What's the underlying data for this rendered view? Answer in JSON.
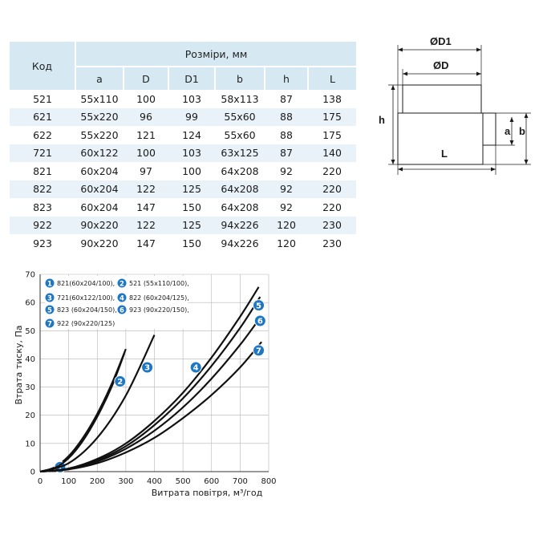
{
  "table": {
    "code_header": "Код",
    "group_header": "Розміри, мм",
    "columns": [
      "a",
      "D",
      "D1",
      "b",
      "h",
      "L"
    ],
    "rows": [
      [
        "521",
        "55x110",
        "100",
        "103",
        "58x113",
        "87",
        "138"
      ],
      [
        "621",
        "55x220",
        "96",
        "99",
        "55x60",
        "88",
        "175"
      ],
      [
        "622",
        "55x220",
        "121",
        "124",
        "55x60",
        "88",
        "175"
      ],
      [
        "721",
        "60x122",
        "100",
        "103",
        "63x125",
        "87",
        "140"
      ],
      [
        "821",
        "60x204",
        "97",
        "100",
        "64x208",
        "92",
        "220"
      ],
      [
        "822",
        "60x204",
        "122",
        "125",
        "64x208",
        "92",
        "220"
      ],
      [
        "823",
        "60x204",
        "147",
        "150",
        "64x208",
        "92",
        "220"
      ],
      [
        "922",
        "90x220",
        "122",
        "125",
        "94x226",
        "120",
        "230"
      ],
      [
        "923",
        "90x220",
        "147",
        "150",
        "94x226",
        "120",
        "230"
      ]
    ]
  },
  "diagram": {
    "d1_label": "ØD1",
    "d_label": "ØD",
    "h_label": "h",
    "a_label": "a",
    "b_label": "b",
    "l_label": "L"
  },
  "chart_data": {
    "type": "line",
    "xlabel": "Витрата повітря, м³/год",
    "ylabel": "Втрата тиску, Па",
    "xlim": [
      0,
      800
    ],
    "ylim": [
      0,
      70
    ],
    "xticks": [
      0,
      100,
      200,
      300,
      400,
      500,
      600,
      700,
      800
    ],
    "yticks": [
      0,
      10,
      20,
      30,
      40,
      50,
      60,
      70
    ],
    "grid": true,
    "legend_position": "top-left",
    "marker_color": "#1f77c4",
    "series": [
      {
        "name": "821(60x204/100),",
        "marker": "1",
        "x": [
          0,
          50,
          100,
          150,
          200,
          250,
          300
        ],
        "y": [
          0,
          1.5,
          5.5,
          12,
          20.5,
          31,
          43.5
        ]
      },
      {
        "name": "521 (55x110/100),",
        "marker": "2",
        "x": [
          0,
          50,
          100,
          150,
          200,
          250,
          295
        ],
        "y": [
          0,
          1.2,
          4.8,
          11,
          19.5,
          30,
          42
        ]
      },
      {
        "name": "721(60x122/100),",
        "marker": "3",
        "x": [
          0,
          100,
          200,
          300,
          400
        ],
        "y": [
          0,
          3,
          12,
          27,
          48.5
        ]
      },
      {
        "name": "822 (60x204/125),",
        "marker": "4",
        "x": [
          0,
          100,
          200,
          300,
          400,
          500,
          600,
          700,
          765
        ],
        "y": [
          0,
          1.1,
          4.5,
          10,
          18,
          28,
          40.5,
          55,
          65.5
        ]
      },
      {
        "name": "823 (60x204/150),",
        "marker": "5",
        "x": [
          0,
          100,
          200,
          300,
          400,
          500,
          600,
          700,
          770
        ],
        "y": [
          0,
          1,
          4,
          9,
          16.5,
          26,
          37.5,
          51,
          62
        ]
      },
      {
        "name": "923 (90x220/150),",
        "marker": "6",
        "x": [
          0,
          100,
          200,
          300,
          400,
          500,
          600,
          700,
          775
        ],
        "y": [
          0,
          0.9,
          3.6,
          8.1,
          14.5,
          22.8,
          33,
          45,
          55.3
        ]
      },
      {
        "name": "922 (90x220/125)",
        "marker": "7",
        "x": [
          0,
          100,
          200,
          300,
          400,
          500,
          600,
          700,
          775
        ],
        "y": [
          0,
          0.8,
          3,
          6.8,
          12,
          19,
          27.2,
          37,
          46
        ]
      }
    ]
  }
}
